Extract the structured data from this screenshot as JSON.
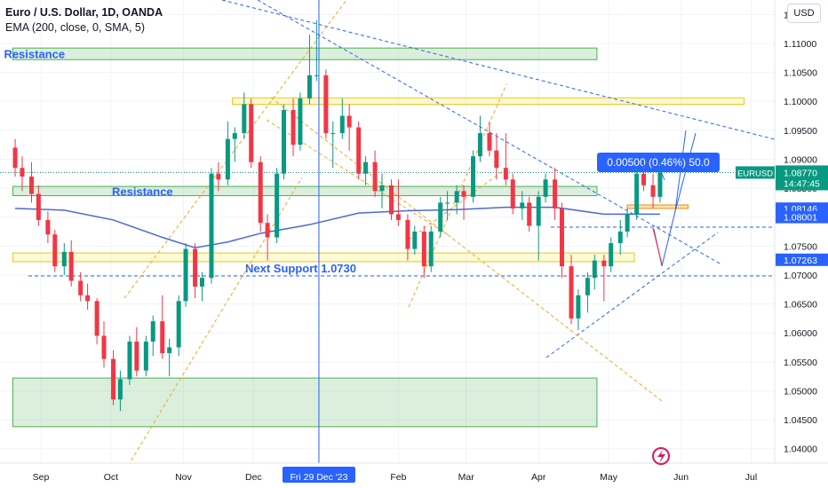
{
  "header": {
    "title": "Euro / U.S. Dollar, 1D, OANDA",
    "indicator": "EMA (200, close, 0, SMA, 5)",
    "currency_button": "USD"
  },
  "chart_data": {
    "type": "candlestick",
    "symbol": "EURUSD",
    "ylim": [
      1.037,
      1.122
    ],
    "y_ticks": [
      "1.11500",
      "1.11000",
      "1.10500",
      "1.10000",
      "1.09500",
      "1.09000",
      "1.08500",
      "1.08000",
      "1.07500",
      "1.07000",
      "1.06500",
      "1.06000",
      "1.05500",
      "1.05000",
      "1.04500",
      "1.04000"
    ],
    "y_tick_values": [
      1.115,
      1.11,
      1.105,
      1.1,
      1.095,
      1.09,
      1.085,
      1.08,
      1.075,
      1.07,
      1.065,
      1.06,
      1.055,
      1.05,
      1.045,
      1.04
    ],
    "x_labels": [
      "Sep",
      "Oct",
      "Nov",
      "Dec",
      "Feb",
      "Mar",
      "Apr",
      "May",
      "Jun",
      "Jul"
    ],
    "x_label_dates": [
      "2023-09-01",
      "2023-10-01",
      "2023-11-01",
      "2023-12-01",
      "2024-02-01",
      "2024-03-01",
      "2024-04-01",
      "2024-05-01",
      "2024-06-01",
      "2024-07-01"
    ],
    "crosshair_date_label": "Fri 29 Dec '23",
    "crosshair_date": "2023-12-29",
    "price_labels": {
      "last": {
        "symbol": "EURUSD",
        "price": "1.08770",
        "countdown": "14:47:45",
        "value": 1.0877
      },
      "levels": [
        {
          "text": "1.08146",
          "value": 1.08146
        },
        {
          "text": "1.08001",
          "value": 1.08001
        },
        {
          "text": "1.07263",
          "value": 1.07263
        }
      ]
    },
    "zones": [
      {
        "label": "Resistance",
        "color": "green",
        "from": "2023-08-20",
        "to": "2024-04-26",
        "y1": 1.1072,
        "y2": 1.1092
      },
      {
        "label": "",
        "color": "yellow",
        "from": "2023-11-22",
        "to": "2024-06-28",
        "y1": 1.0995,
        "y2": 1.1006
      },
      {
        "label": "Resistance",
        "color": "green",
        "from": "2023-08-20",
        "to": "2024-04-26",
        "y1": 1.0837,
        "y2": 1.0853
      },
      {
        "label": "Next Support 1.0730",
        "color": "yellow",
        "from": "2023-08-20",
        "to": "2024-05-12",
        "y1": 1.0723,
        "y2": 1.0738
      },
      {
        "label": "",
        "color": "orange",
        "from": "2024-05-09",
        "to": "2024-06-04",
        "y1": 1.0815,
        "y2": 1.0821
      },
      {
        "label": "",
        "color": "green",
        "from": "2023-08-20",
        "to": "2024-04-26",
        "y1": 1.0438,
        "y2": 1.0522
      }
    ],
    "measure_label": "0.00500 (0.46%) 50.0",
    "series": [
      {
        "type": "candle",
        "data": [
          [
            "2023-08-21",
            1.092,
            1.0935,
            1.087,
            1.0885
          ],
          [
            "2023-08-24",
            1.0885,
            1.0905,
            1.0845,
            1.087
          ],
          [
            "2023-08-28",
            1.087,
            1.0895,
            1.0825,
            1.084
          ],
          [
            "2023-08-31",
            1.084,
            1.0855,
            1.0785,
            1.0795
          ],
          [
            "2023-09-04",
            1.0795,
            1.081,
            1.0755,
            1.077
          ],
          [
            "2023-09-07",
            1.077,
            1.0778,
            1.0705,
            1.0715
          ],
          [
            "2023-09-11",
            1.0715,
            1.0755,
            1.07,
            1.074
          ],
          [
            "2023-09-14",
            1.074,
            1.076,
            1.068,
            1.069
          ],
          [
            "2023-09-18",
            1.069,
            1.0705,
            1.0655,
            1.0665
          ],
          [
            "2023-09-21",
            1.0665,
            1.0685,
            1.064,
            1.0655
          ],
          [
            "2023-09-25",
            1.0655,
            1.066,
            1.058,
            1.0595
          ],
          [
            "2023-09-28",
            1.0595,
            1.062,
            1.054,
            1.0555
          ],
          [
            "2023-10-02",
            1.0555,
            1.057,
            1.0475,
            1.0485
          ],
          [
            "2023-10-05",
            1.0485,
            1.0535,
            1.0465,
            1.052
          ],
          [
            "2023-10-09",
            1.052,
            1.0595,
            1.051,
            1.0585
          ],
          [
            "2023-10-12",
            1.0585,
            1.061,
            1.0525,
            1.0535
          ],
          [
            "2023-10-16",
            1.0535,
            1.0595,
            1.0525,
            1.0585
          ],
          [
            "2023-10-19",
            1.0585,
            1.063,
            1.056,
            1.062
          ],
          [
            "2023-10-23",
            1.062,
            1.0665,
            1.0555,
            1.0565
          ],
          [
            "2023-10-26",
            1.0565,
            1.059,
            1.0525,
            1.0575
          ],
          [
            "2023-10-30",
            1.0575,
            1.0665,
            1.056,
            1.0655
          ],
          [
            "2023-11-02",
            1.0655,
            1.0755,
            1.0645,
            1.0745
          ],
          [
            "2023-11-06",
            1.0745,
            1.0755,
            1.066,
            1.068
          ],
          [
            "2023-11-09",
            1.068,
            1.0705,
            1.0655,
            1.0695
          ],
          [
            "2023-11-13",
            1.0695,
            1.0885,
            1.0685,
            1.0875
          ],
          [
            "2023-11-16",
            1.0875,
            1.0895,
            1.0845,
            1.0865
          ],
          [
            "2023-11-20",
            1.0865,
            1.0965,
            1.0855,
            1.0935
          ],
          [
            "2023-11-23",
            1.0935,
            1.0955,
            1.0895,
            1.0945
          ],
          [
            "2023-11-27",
            1.0945,
            1.1015,
            1.0935,
            1.0995
          ],
          [
            "2023-11-30",
            1.0995,
            1.1005,
            1.0885,
            1.0895
          ],
          [
            "2023-12-04",
            1.0895,
            1.0905,
            1.0775,
            1.079
          ],
          [
            "2023-12-07",
            1.079,
            1.0805,
            1.0725,
            1.0765
          ],
          [
            "2023-12-11",
            1.0765,
            1.0885,
            1.0755,
            1.0875
          ],
          [
            "2023-12-14",
            1.0875,
            1.0995,
            1.0865,
            1.0985
          ],
          [
            "2023-12-18",
            1.0985,
            1.1005,
            1.0905,
            1.0925
          ],
          [
            "2023-12-21",
            1.0925,
            1.1015,
            1.0915,
            1.1005
          ],
          [
            "2023-12-25",
            1.1005,
            1.1115,
            1.0995,
            1.1045
          ],
          [
            "2023-12-28",
            1.1045,
            1.114,
            1.1035,
            1.1045
          ],
          [
            "2024-01-01",
            1.1045,
            1.1055,
            1.0935,
            1.0945
          ],
          [
            "2024-01-04",
            1.0945,
            1.0965,
            1.0885,
            1.0945
          ],
          [
            "2024-01-08",
            1.0945,
            1.1005,
            1.0935,
            1.0975
          ],
          [
            "2024-01-11",
            1.0975,
            1.0995,
            1.0915,
            1.0955
          ],
          [
            "2024-01-15",
            1.0955,
            1.0965,
            1.0865,
            1.0875
          ],
          [
            "2024-01-18",
            1.0875,
            1.0905,
            1.0855,
            1.0895
          ],
          [
            "2024-01-22",
            1.0895,
            1.0915,
            1.0835,
            1.0845
          ],
          [
            "2024-01-25",
            1.0845,
            1.0875,
            1.0815,
            1.0855
          ],
          [
            "2024-01-29",
            1.0855,
            1.0865,
            1.0795,
            1.0805
          ],
          [
            "2024-02-01",
            1.0805,
            1.0865,
            1.0785,
            1.0795
          ],
          [
            "2024-02-05",
            1.0795,
            1.0805,
            1.0725,
            1.0745
          ],
          [
            "2024-02-08",
            1.0745,
            1.0785,
            1.0735,
            1.0775
          ],
          [
            "2024-02-12",
            1.0775,
            1.0785,
            1.0695,
            1.0715
          ],
          [
            "2024-02-15",
            1.0715,
            1.0785,
            1.0705,
            1.0775
          ],
          [
            "2024-02-19",
            1.0775,
            1.0835,
            1.0765,
            1.0825
          ],
          [
            "2024-02-22",
            1.0825,
            1.0845,
            1.0795,
            1.0825
          ],
          [
            "2024-02-26",
            1.0825,
            1.0855,
            1.0805,
            1.0845
          ],
          [
            "2024-02-29",
            1.0845,
            1.0855,
            1.0795,
            1.0835
          ],
          [
            "2024-03-04",
            1.0835,
            1.0915,
            1.0825,
            1.0905
          ],
          [
            "2024-03-07",
            1.0905,
            1.0975,
            1.0895,
            1.0945
          ],
          [
            "2024-03-11",
            1.0945,
            1.0965,
            1.0905,
            1.0915
          ],
          [
            "2024-03-14",
            1.0915,
            1.0945,
            1.0865,
            1.0885
          ],
          [
            "2024-03-18",
            1.0885,
            1.0945,
            1.0855,
            1.0865
          ],
          [
            "2024-03-21",
            1.0865,
            1.0875,
            1.0805,
            1.0815
          ],
          [
            "2024-03-25",
            1.0815,
            1.0845,
            1.0795,
            1.0825
          ],
          [
            "2024-03-28",
            1.0825,
            1.0835,
            1.0775,
            1.0785
          ],
          [
            "2024-04-01",
            1.0785,
            1.0845,
            1.0725,
            1.0835
          ],
          [
            "2024-04-04",
            1.0835,
            1.0875,
            1.0825,
            1.0865
          ],
          [
            "2024-04-08",
            1.0865,
            1.0885,
            1.0795,
            1.0815
          ],
          [
            "2024-04-11",
            1.0815,
            1.0825,
            1.0695,
            1.0715
          ],
          [
            "2024-04-15",
            1.0715,
            1.0735,
            1.0615,
            1.0625
          ],
          [
            "2024-04-18",
            1.0625,
            1.0675,
            1.0605,
            1.0665
          ],
          [
            "2024-04-22",
            1.0665,
            1.0705,
            1.0635,
            1.0695
          ],
          [
            "2024-04-25",
            1.0695,
            1.0735,
            1.0675,
            1.0725
          ],
          [
            "2024-04-29",
            1.0725,
            1.0735,
            1.0655,
            1.0715
          ],
          [
            "2024-05-02",
            1.0715,
            1.0765,
            1.0705,
            1.0755
          ],
          [
            "2024-05-06",
            1.0755,
            1.0795,
            1.0735,
            1.0775
          ],
          [
            "2024-05-09",
            1.0775,
            1.0815,
            1.0765,
            1.0805
          ],
          [
            "2024-05-13",
            1.0805,
            1.0885,
            1.0795,
            1.0875
          ],
          [
            "2024-05-16",
            1.0875,
            1.0895,
            1.0845,
            1.0855
          ],
          [
            "2024-05-20",
            1.0855,
            1.0875,
            1.0815,
            1.0835
          ],
          [
            "2024-05-23",
            1.0835,
            1.0895,
            1.0825,
            1.0877
          ]
        ]
      },
      {
        "type": "line",
        "name": "EMA (200, close, 0, SMA, 5)",
        "data": [
          [
            "2023-08-21",
            1.0815
          ],
          [
            "2023-09-11",
            1.0812
          ],
          [
            "2023-10-02",
            1.0795
          ],
          [
            "2023-10-23",
            1.0765
          ],
          [
            "2023-11-06",
            1.0747
          ],
          [
            "2023-11-20",
            1.0757
          ],
          [
            "2023-12-04",
            1.0772
          ],
          [
            "2023-12-25",
            1.0787
          ],
          [
            "2024-01-15",
            1.0807
          ],
          [
            "2024-02-05",
            1.0811
          ],
          [
            "2024-02-26",
            1.0813
          ],
          [
            "2024-03-18",
            1.0817
          ],
          [
            "2024-04-08",
            1.0817
          ],
          [
            "2024-04-29",
            1.0805
          ],
          [
            "2024-05-23",
            1.0805
          ]
        ]
      }
    ]
  }
}
